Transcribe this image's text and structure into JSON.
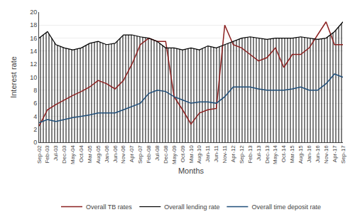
{
  "chart_data": {
    "type": "line",
    "xlabel": "Months",
    "ylabel": "Interest rate",
    "categories": [
      "Sep-02",
      "Feb-03",
      "Jul-03",
      "Dec-03",
      "May-04",
      "Oct-04",
      "Mar-05",
      "Aug-05",
      "Jan-06",
      "Jun-06",
      "Nov-06",
      "Apr-07",
      "Sep-07",
      "Feb-08",
      "Jul-08",
      "Dec-08",
      "May-09",
      "Oct-09",
      "Mar-10",
      "Aug-10",
      "Jan-11",
      "Jun-11",
      "Nov-11",
      "Apr-12",
      "Sep-12",
      "Feb-13",
      "Jul-13",
      "Dec-13",
      "May-14",
      "Oct-14",
      "Mar-15",
      "Aug-15",
      "Jan-16",
      "Jun-16",
      "Nov-16",
      "Apr-17",
      "Sep-17"
    ],
    "series": [
      {
        "name": "Overall TB rates",
        "color": "#8B2020",
        "type": "line",
        "values": [
          2.5,
          5.0,
          5.8,
          6.5,
          7.2,
          7.8,
          8.5,
          9.5,
          9.0,
          8.2,
          9.5,
          12.0,
          15.0,
          16.0,
          15.5,
          15.5,
          7.0,
          5.0,
          2.8,
          4.5,
          5.0,
          5.2,
          18.0,
          15.0,
          14.5,
          13.5,
          12.5,
          13.0,
          14.5,
          11.5,
          13.5,
          13.5,
          14.5,
          16.5,
          18.5,
          15.0,
          15.0
        ]
      },
      {
        "name": "Overall lending rate",
        "color": "#000000",
        "type": "area",
        "values": [
          16.0,
          17.0,
          15.0,
          14.5,
          14.2,
          14.5,
          15.2,
          15.5,
          15.0,
          15.2,
          16.5,
          16.5,
          16.2,
          16.0,
          15.5,
          14.5,
          14.5,
          14.2,
          14.5,
          14.2,
          14.8,
          14.5,
          15.0,
          15.5,
          16.0,
          16.2,
          16.0,
          15.8,
          16.0,
          16.0,
          16.0,
          16.2,
          16.0,
          15.8,
          16.0,
          17.0,
          18.5
        ]
      },
      {
        "name": "Overall time deposit rate",
        "color": "#1F4E79",
        "type": "line",
        "values": [
          3.0,
          3.5,
          3.2,
          3.5,
          3.8,
          4.0,
          4.2,
          4.5,
          4.5,
          4.5,
          5.0,
          5.5,
          6.0,
          7.5,
          8.0,
          7.8,
          7.0,
          6.5,
          6.0,
          6.2,
          6.2,
          6.0,
          7.0,
          8.5,
          8.5,
          8.5,
          8.2,
          8.0,
          8.0,
          8.0,
          8.2,
          8.5,
          8.0,
          8.0,
          9.0,
          10.5,
          10.0
        ]
      }
    ],
    "ylim": [
      0,
      20
    ],
    "yticks": [
      0,
      2,
      4,
      6,
      8,
      10,
      12,
      14,
      16,
      18,
      20
    ],
    "grid": true,
    "legend": "bottom"
  }
}
